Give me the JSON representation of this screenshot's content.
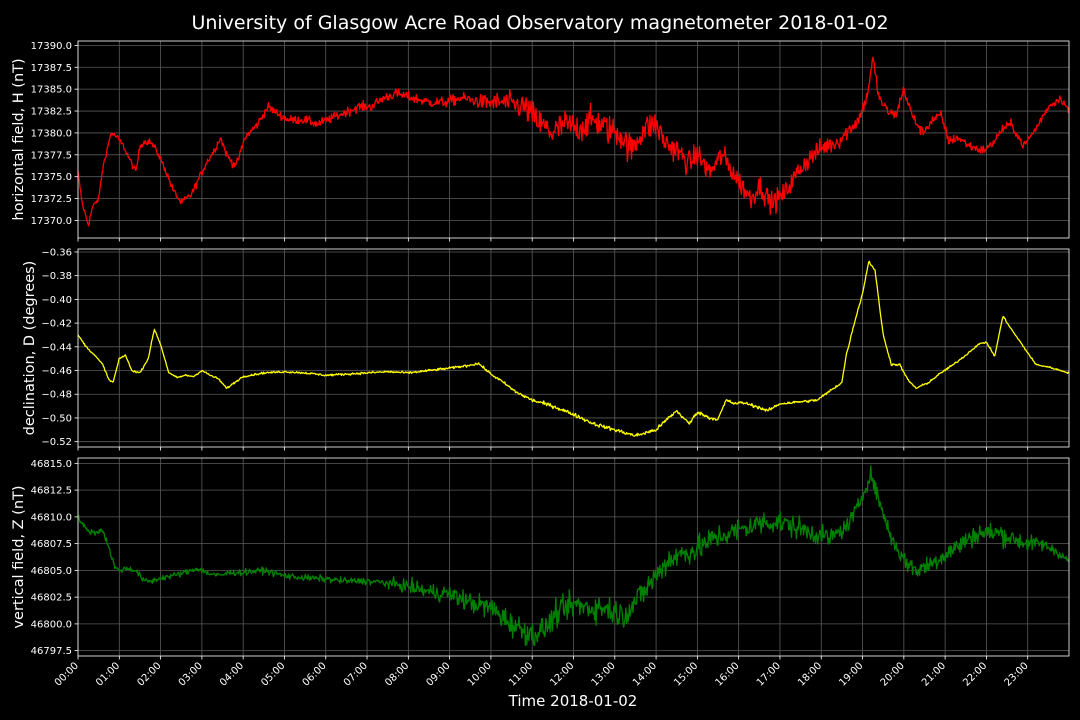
{
  "figure": {
    "title": "University of Glasgow Acre Road Observatory magnetometer 2018-01-02",
    "xlabel": "Time 2018-01-02",
    "background": "#000000",
    "grid_color": "#5a5a5a",
    "time_ticks": [
      "00:00",
      "01:00",
      "02:00",
      "03:00",
      "04:00",
      "05:00",
      "06:00",
      "07:00",
      "08:00",
      "09:00",
      "10:00",
      "11:00",
      "12:00",
      "13:00",
      "14:00",
      "15:00",
      "16:00",
      "17:00",
      "18:00",
      "19:00",
      "20:00",
      "21:00",
      "22:00",
      "23:00"
    ]
  },
  "chart_data": [
    {
      "type": "line",
      "ylabel": "horizontal field, H (nT)",
      "color": "#ff0000",
      "ylim": [
        17368.0,
        17390.5
      ],
      "yticks": [
        17370.0,
        17372.5,
        17375.0,
        17377.5,
        17380.0,
        17382.5,
        17385.0,
        17387.5,
        17390.0
      ],
      "ytick_labels": [
        "17370.0",
        "17372.5",
        "17375.0",
        "17377.5",
        "17380.0",
        "17382.5",
        "17385.0",
        "17387.5",
        "17390.0"
      ],
      "noise": [
        [
          0,
          0.3
        ],
        [
          9.5,
          0.6
        ],
        [
          11,
          1.6
        ],
        [
          13.5,
          1.6
        ],
        [
          15,
          1.3
        ],
        [
          18,
          1.1
        ],
        [
          19.5,
          0.6
        ],
        [
          24,
          0.4
        ]
      ],
      "x_hours": [
        0,
        0.1,
        0.25,
        0.35,
        0.5,
        0.6,
        0.8,
        0.95,
        1.1,
        1.25,
        1.4,
        1.5,
        1.6,
        1.75,
        1.9,
        2.1,
        2.3,
        2.5,
        2.75,
        2.9,
        3.1,
        3.3,
        3.45,
        3.6,
        3.75,
        3.85,
        4.05,
        4.35,
        4.6,
        4.9,
        5.1,
        5.5,
        5.8,
        6.3,
        6.8,
        7.1,
        7.4,
        7.7,
        8.1,
        8.5,
        8.9,
        9.3,
        9.8,
        10.3,
        10.8,
        11.2,
        11.5,
        11.8,
        12.1,
        12.5,
        12.8,
        13.1,
        13.4,
        13.7,
        14.0,
        14.2,
        14.5,
        14.8,
        15.0,
        15.3,
        15.6,
        15.8,
        16.0,
        16.3,
        16.5,
        16.8,
        17.1,
        17.5,
        17.8,
        18.1,
        18.4,
        18.7,
        18.9,
        19.1,
        19.25,
        19.4,
        19.6,
        19.8,
        20.0,
        20.2,
        20.45,
        20.7,
        20.9,
        21.1,
        21.3,
        21.6,
        21.9,
        22.1,
        22.4,
        22.6,
        22.9,
        23.2,
        23.5,
        23.8,
        24.0
      ],
      "values": [
        17375.5,
        17372.0,
        17369.5,
        17371.5,
        17372.5,
        17376.0,
        17380.0,
        17379.5,
        17378.5,
        17377.0,
        17375.5,
        17378.5,
        17379.0,
        17379.0,
        17378.0,
        17376.0,
        17373.5,
        17372.0,
        17373.0,
        17374.5,
        17376.5,
        17378.0,
        17379.5,
        17377.5,
        17376.5,
        17376.5,
        17379.5,
        17381.0,
        17383.0,
        17382.0,
        17381.5,
        17381.5,
        17381.0,
        17382.0,
        17383.0,
        17383.0,
        17384.0,
        17384.5,
        17384.0,
        17383.5,
        17383.5,
        17384.0,
        17383.5,
        17383.5,
        17383.0,
        17381.0,
        17380.0,
        17381.0,
        17380.5,
        17381.5,
        17380.5,
        17380.0,
        17378.0,
        17380.5,
        17381.0,
        17379.0,
        17378.0,
        17376.5,
        17377.5,
        17375.5,
        17377.5,
        17376.0,
        17374.5,
        17372.5,
        17374.0,
        17372.0,
        17373.0,
        17376.0,
        17377.5,
        17378.5,
        17379.0,
        17380.5,
        17381.5,
        17384.0,
        17388.5,
        17384.0,
        17382.5,
        17382.0,
        17385.0,
        17382.0,
        17380.0,
        17381.5,
        17382.0,
        17379.0,
        17379.5,
        17378.5,
        17378.0,
        17378.5,
        17380.5,
        17381.0,
        17378.5,
        17380.5,
        17383.0,
        17384.0,
        17382.5
      ]
    },
    {
      "type": "line",
      "ylabel": "declination, D (degrees)",
      "color": "#ffff00",
      "ylim": [
        -0.5245,
        -0.3575
      ],
      "yticks": [
        -0.52,
        -0.5,
        -0.48,
        -0.46,
        -0.44,
        -0.42,
        -0.4,
        -0.38,
        -0.36
      ],
      "ytick_labels": [
        "−0.52",
        "−0.50",
        "−0.48",
        "−0.46",
        "−0.44",
        "−0.42",
        "−0.40",
        "−0.38",
        "−0.36"
      ],
      "noise": [
        [
          0,
          0.0006
        ],
        [
          10,
          0.001
        ],
        [
          11,
          0.0015
        ],
        [
          14,
          0.0015
        ],
        [
          18,
          0.001
        ],
        [
          24,
          0.0006
        ]
      ],
      "x_hours": [
        0,
        0.2,
        0.4,
        0.6,
        0.75,
        0.85,
        1.0,
        1.15,
        1.3,
        1.5,
        1.7,
        1.85,
        2.0,
        2.2,
        2.4,
        2.6,
        2.8,
        3.0,
        3.2,
        3.4,
        3.6,
        3.8,
        4.0,
        4.5,
        5.0,
        5.5,
        6.0,
        6.5,
        7.0,
        7.5,
        8.0,
        8.5,
        9.0,
        9.4,
        9.7,
        10.0,
        10.3,
        10.6,
        11.0,
        11.5,
        12.0,
        12.5,
        13.0,
        13.5,
        14.0,
        14.3,
        14.5,
        14.8,
        15.0,
        15.3,
        15.5,
        15.7,
        15.9,
        16.1,
        16.4,
        16.7,
        17.0,
        17.3,
        17.6,
        17.9,
        18.1,
        18.3,
        18.5,
        18.6,
        18.8,
        19.0,
        19.15,
        19.3,
        19.5,
        19.7,
        19.9,
        20.1,
        20.3,
        20.6,
        20.9,
        21.2,
        21.5,
        21.8,
        22.0,
        22.2,
        22.4,
        22.6,
        22.9,
        23.2,
        23.5,
        23.8,
        24.0
      ],
      "values": [
        -0.43,
        -0.44,
        -0.447,
        -0.455,
        -0.468,
        -0.47,
        -0.45,
        -0.447,
        -0.46,
        -0.462,
        -0.45,
        -0.425,
        -0.438,
        -0.462,
        -0.466,
        -0.464,
        -0.465,
        -0.46,
        -0.464,
        -0.467,
        -0.475,
        -0.47,
        -0.465,
        -0.462,
        -0.461,
        -0.462,
        -0.464,
        -0.463,
        -0.462,
        -0.461,
        -0.462,
        -0.46,
        -0.458,
        -0.456,
        -0.454,
        -0.463,
        -0.47,
        -0.478,
        -0.485,
        -0.49,
        -0.497,
        -0.505,
        -0.51,
        -0.515,
        -0.51,
        -0.5,
        -0.494,
        -0.505,
        -0.495,
        -0.5,
        -0.501,
        -0.485,
        -0.488,
        -0.487,
        -0.49,
        -0.494,
        -0.488,
        -0.487,
        -0.486,
        -0.485,
        -0.48,
        -0.475,
        -0.47,
        -0.448,
        -0.42,
        -0.395,
        -0.368,
        -0.375,
        -0.43,
        -0.455,
        -0.455,
        -0.468,
        -0.475,
        -0.47,
        -0.462,
        -0.455,
        -0.447,
        -0.438,
        -0.436,
        -0.448,
        -0.414,
        -0.425,
        -0.44,
        -0.455,
        -0.457,
        -0.46,
        -0.462
      ]
    },
    {
      "type": "line",
      "ylabel": "vertical field, Z (nT)",
      "color": "#008000",
      "ylim": [
        46797.0,
        46815.5
      ],
      "yticks": [
        46797.5,
        46800.0,
        46802.5,
        46805.0,
        46807.5,
        46810.0,
        46812.5,
        46815.0
      ],
      "ytick_labels": [
        "46797.5",
        "46800.0",
        "46802.5",
        "46805.0",
        "46807.5",
        "46810.0",
        "46812.5",
        "46815.0"
      ],
      "noise": [
        [
          0,
          0.25
        ],
        [
          7,
          0.3
        ],
        [
          8.5,
          0.7
        ],
        [
          10.5,
          1.1
        ],
        [
          13.5,
          1.2
        ],
        [
          17.5,
          1.0
        ],
        [
          19,
          0.6
        ],
        [
          20.5,
          0.9
        ],
        [
          22.5,
          0.9
        ],
        [
          24,
          0.35
        ]
      ],
      "x_hours": [
        0,
        0.2,
        0.4,
        0.6,
        0.8,
        0.9,
        1.0,
        1.2,
        1.4,
        1.6,
        1.8,
        2.0,
        2.3,
        2.6,
        2.9,
        3.1,
        3.4,
        3.7,
        4.0,
        4.5,
        5.0,
        5.5,
        6.0,
        6.5,
        7.0,
        7.5,
        8.0,
        8.5,
        9.0,
        9.5,
        10.0,
        10.5,
        11.0,
        11.3,
        11.6,
        12.0,
        12.4,
        12.8,
        13.2,
        13.6,
        14.0,
        14.3,
        14.6,
        15.0,
        15.4,
        15.8,
        16.2,
        16.6,
        17.0,
        17.4,
        17.8,
        18.2,
        18.6,
        18.9,
        19.2,
        19.4,
        19.7,
        20.0,
        20.3,
        20.6,
        21.0,
        21.4,
        21.8,
        22.0,
        22.3,
        22.6,
        23.0,
        23.3,
        23.6,
        23.8,
        24.0
      ],
      "values": [
        46810.0,
        46808.8,
        46808.5,
        46808.8,
        46806.5,
        46805.2,
        46805.0,
        46805.2,
        46805.0,
        46804.0,
        46804.0,
        46804.3,
        46804.5,
        46804.8,
        46805.2,
        46804.8,
        46804.5,
        46804.8,
        46804.8,
        46805.0,
        46804.5,
        46804.3,
        46804.2,
        46804.0,
        46804.0,
        46803.8,
        46803.5,
        46803.0,
        46802.8,
        46802.0,
        46801.5,
        46800.0,
        46799.0,
        46799.5,
        46801.0,
        46801.8,
        46801.5,
        46801.5,
        46800.8,
        46802.5,
        46804.5,
        46806.0,
        46806.5,
        46807.0,
        46808.0,
        46808.5,
        46809.0,
        46809.5,
        46809.5,
        46809.0,
        46808.5,
        46808.0,
        46809.0,
        46811.0,
        46814.0,
        46811.5,
        46808.0,
        46806.0,
        46805.0,
        46805.5,
        46806.5,
        46807.5,
        46808.5,
        46808.5,
        46808.5,
        46808.0,
        46807.5,
        46807.5,
        46807.0,
        46806.5,
        46805.8
      ]
    }
  ]
}
